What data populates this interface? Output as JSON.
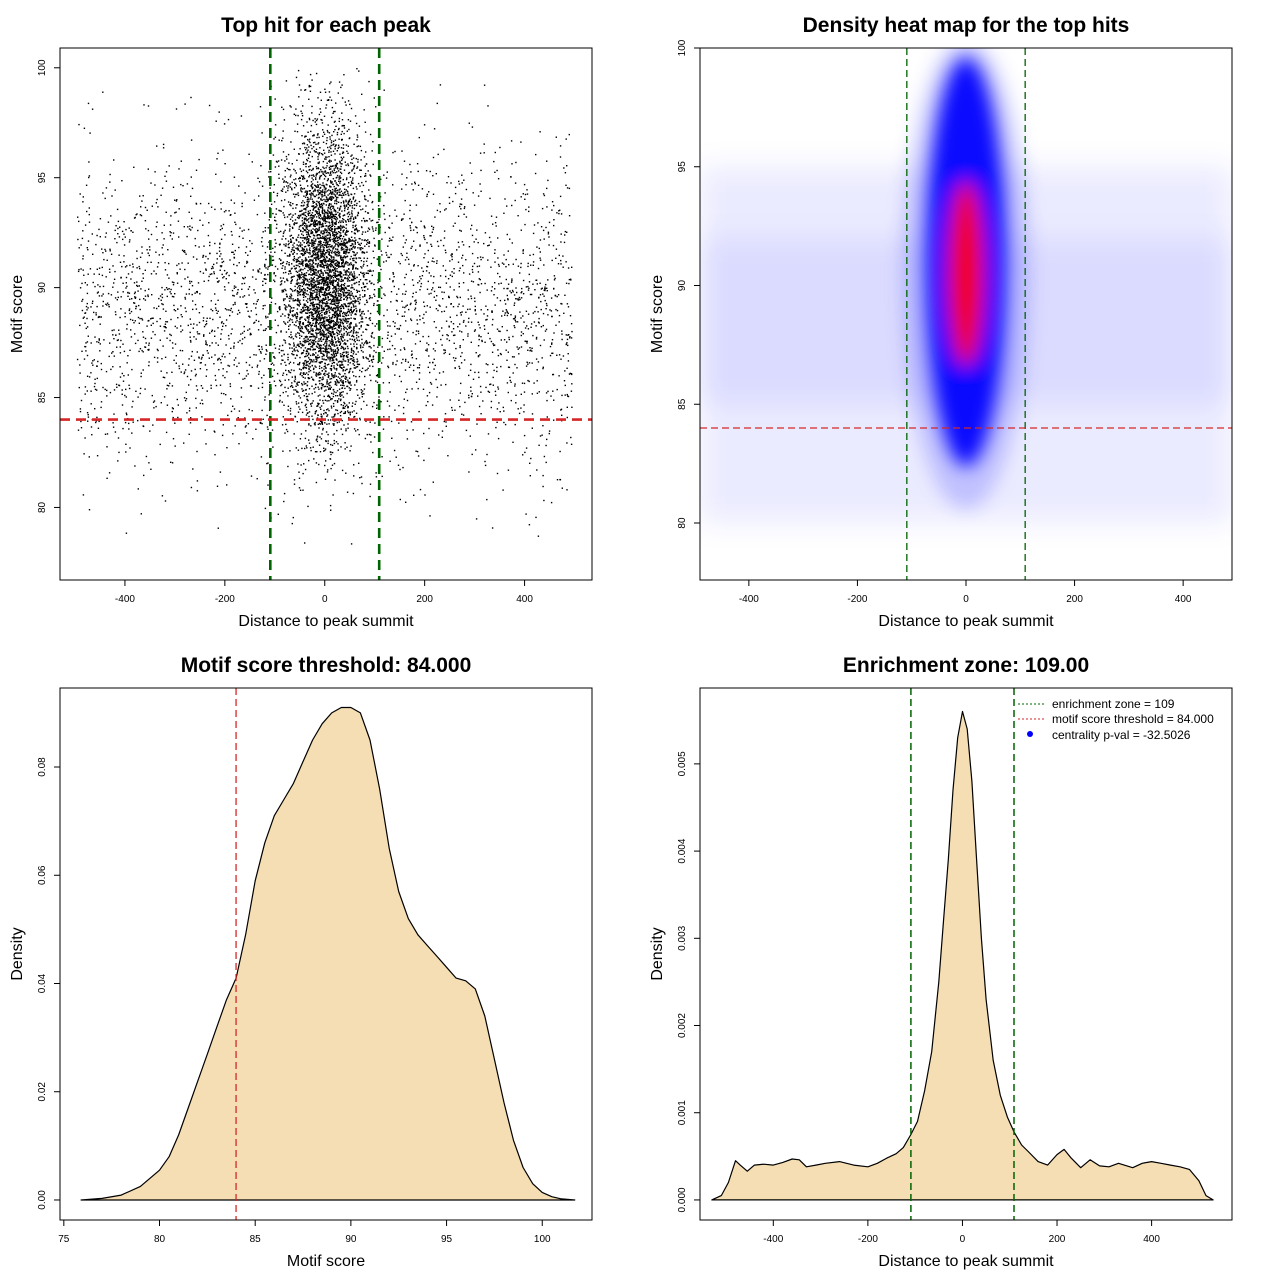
{
  "chart_data": [
    {
      "type": "scatter",
      "title": "Top hit for each peak",
      "xlabel": "Distance to peak summit",
      "ylabel": "Motif score",
      "xlim": [
        -530,
        535
      ],
      "ylim": [
        76.7,
        100.9
      ],
      "xticks": [
        -400,
        -200,
        0,
        200,
        400
      ],
      "yticks": [
        80,
        85,
        90,
        95,
        100
      ],
      "hlines": [
        {
          "value": 84,
          "color": "#d62728",
          "style": "dashed"
        }
      ],
      "vlines": [
        {
          "value": -109,
          "color": "#006400",
          "style": "dashed"
        },
        {
          "value": 109,
          "color": "#006400",
          "style": "dashed"
        }
      ],
      "points_description": "Approx. 9000 peaks; dense vertical band around distance 0 (roughly -100..100) with scores 78-100, sparser uniform background across -500..500 with scores 78-100"
    },
    {
      "type": "heatmap",
      "title": "Density heat map for the top hits",
      "xlabel": "Distance to peak summit",
      "ylabel": "Motif score",
      "xlim": [
        -490,
        490
      ],
      "ylim": [
        77.6,
        100
      ],
      "xticks": [
        -400,
        -200,
        0,
        200,
        400
      ],
      "yticks": [
        80,
        85,
        90,
        95,
        100
      ],
      "colors": [
        "#ffffff",
        "#0000ff",
        "#ff0000"
      ],
      "hotspot": {
        "x": 0,
        "y": 90.5
      },
      "hlines": [
        {
          "value": 84,
          "color": "#d62728",
          "style": "dashed"
        }
      ],
      "vlines": [
        {
          "value": -109,
          "color": "#006400",
          "style": "dashed"
        },
        {
          "value": 109,
          "color": "#006400",
          "style": "dashed"
        }
      ]
    },
    {
      "type": "area",
      "title": "Motif score threshold: 84.000",
      "xlabel": "Motif score",
      "ylabel": "Density",
      "xlim": [
        74.8,
        102.6
      ],
      "ylim": [
        -0.0037,
        0.0946
      ],
      "xticks": [
        75,
        80,
        85,
        90,
        95,
        100
      ],
      "yticks": [
        0.0,
        0.02,
        0.04,
        0.06,
        0.08
      ],
      "ytick_labels": [
        "0.00",
        "0.02",
        "0.04",
        "0.06",
        "0.08"
      ],
      "fill": "#f5deb3",
      "x": [
        75.9,
        77,
        78,
        79,
        80,
        80.5,
        81,
        81.5,
        82,
        82.5,
        83,
        83.5,
        84,
        84.5,
        85,
        85.5,
        86,
        86.5,
        87,
        87.5,
        88,
        88.5,
        89,
        89.5,
        90,
        90.5,
        91,
        91.5,
        92,
        92.5,
        93,
        93.5,
        94,
        94.5,
        95,
        95.5,
        96,
        96.5,
        97,
        97.5,
        98,
        98.5,
        99,
        99.5,
        100,
        100.5,
        101,
        101.7
      ],
      "values": [
        0.0,
        0.0003,
        0.0009,
        0.0025,
        0.0055,
        0.008,
        0.012,
        0.017,
        0.022,
        0.027,
        0.032,
        0.037,
        0.041,
        0.049,
        0.059,
        0.066,
        0.071,
        0.074,
        0.077,
        0.081,
        0.085,
        0.088,
        0.09,
        0.091,
        0.091,
        0.09,
        0.085,
        0.076,
        0.065,
        0.057,
        0.052,
        0.049,
        0.047,
        0.045,
        0.043,
        0.041,
        0.0405,
        0.039,
        0.034,
        0.026,
        0.018,
        0.011,
        0.006,
        0.003,
        0.0014,
        0.0006,
        0.0002,
        0.0
      ],
      "vlines": [
        {
          "value": 84,
          "color": "#d62728",
          "style": "dashed"
        }
      ]
    },
    {
      "type": "area",
      "title": "Enrichment zone: 109.00",
      "xlabel": "Distance to peak summit",
      "ylabel": "Density",
      "xlim": [
        -555,
        570
      ],
      "ylim": [
        -0.00023,
        0.00587
      ],
      "xticks": [
        -400,
        -200,
        0,
        200,
        400
      ],
      "yticks": [
        0.0,
        0.001,
        0.002,
        0.003,
        0.004,
        0.005
      ],
      "ytick_labels": [
        "0.000",
        "0.001",
        "0.002",
        "0.003",
        "0.004",
        "0.005"
      ],
      "fill": "#f5deb3",
      "x": [
        -530,
        -510,
        -495,
        -480,
        -470,
        -455,
        -440,
        -420,
        -400,
        -380,
        -360,
        -345,
        -330,
        -310,
        -290,
        -260,
        -230,
        -200,
        -180,
        -160,
        -140,
        -125,
        -109,
        -95,
        -80,
        -65,
        -50,
        -40,
        -30,
        -20,
        -10,
        0,
        10,
        20,
        30,
        40,
        50,
        65,
        80,
        95,
        109,
        125,
        140,
        160,
        180,
        200,
        215,
        230,
        250,
        270,
        290,
        310,
        330,
        360,
        380,
        400,
        420,
        440,
        460,
        480,
        500,
        515,
        530
      ],
      "values": [
        0.0,
        5e-05,
        0.0002,
        0.00045,
        0.0004,
        0.00033,
        0.0004,
        0.00041,
        0.0004,
        0.00043,
        0.00047,
        0.00046,
        0.00038,
        0.0004,
        0.00042,
        0.00044,
        0.0004,
        0.00038,
        0.00042,
        0.00048,
        0.00053,
        0.0006,
        0.00075,
        0.0009,
        0.00125,
        0.0017,
        0.0025,
        0.0032,
        0.0039,
        0.0047,
        0.0053,
        0.0056,
        0.0054,
        0.0048,
        0.0039,
        0.003,
        0.0023,
        0.0016,
        0.0012,
        0.00095,
        0.00078,
        0.00063,
        0.00055,
        0.00044,
        0.0004,
        0.00052,
        0.00058,
        0.00048,
        0.00037,
        0.00046,
        0.00039,
        0.00038,
        0.00042,
        0.00037,
        0.00042,
        0.00044,
        0.00042,
        0.0004,
        0.00038,
        0.00035,
        0.00022,
        5e-05,
        0.0
      ],
      "vlines": [
        {
          "value": -109,
          "color": "#006400",
          "style": "dashed"
        },
        {
          "value": 109,
          "color": "#006400",
          "style": "dashed"
        }
      ],
      "legend": {
        "placement": "top-right",
        "entries": [
          {
            "label": "enrichment zone = 109",
            "kind": "line",
            "color": "#006400"
          },
          {
            "label": "motif score threshold = 84.000",
            "kind": "line",
            "color": "#d62728"
          },
          {
            "label": "centrality p-val = -32.5026",
            "kind": "point",
            "color": "#0000ff"
          }
        ]
      }
    }
  ]
}
